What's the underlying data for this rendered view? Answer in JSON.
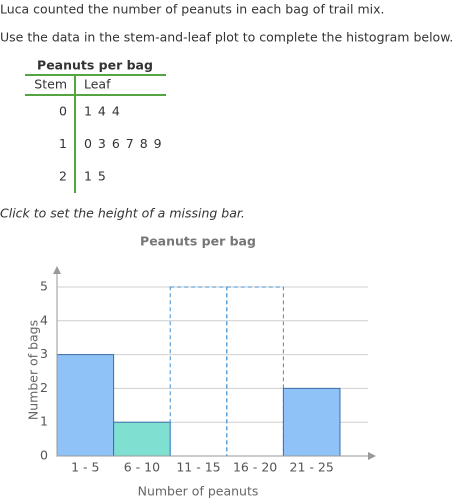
{
  "question": {
    "line1": "Luca counted the number of peanuts in each bag of trail mix.",
    "line2": "Use the data in the stem-and-leaf plot to complete the histogram below."
  },
  "table": {
    "title": "Peanuts per bag",
    "headers": [
      "Stem",
      "Leaf"
    ],
    "rows": [
      [
        "0",
        "1 4 4"
      ],
      [
        "1",
        "0 3 6 7 8 9"
      ],
      [
        "2",
        "1 5"
      ]
    ]
  },
  "instruction": "Click to set the height of a missing bar.",
  "chart_data": {
    "type": "histogram",
    "title": "Peanuts per bag",
    "x_label": "Number of peanuts",
    "y_label": "Number of bags",
    "categories": [
      "1 - 5",
      "6 - 10",
      "11 - 15",
      "16 - 20",
      "21 - 25"
    ],
    "values": [
      3,
      1,
      null,
      null,
      2
    ],
    "colors": [
      "#8fc2f7",
      "#7fe0d2",
      null,
      null,
      "#8fc2f7"
    ],
    "ylim": [
      0,
      5
    ],
    "yticks": [
      0,
      1,
      2,
      3,
      4,
      5
    ],
    "grid": true
  }
}
